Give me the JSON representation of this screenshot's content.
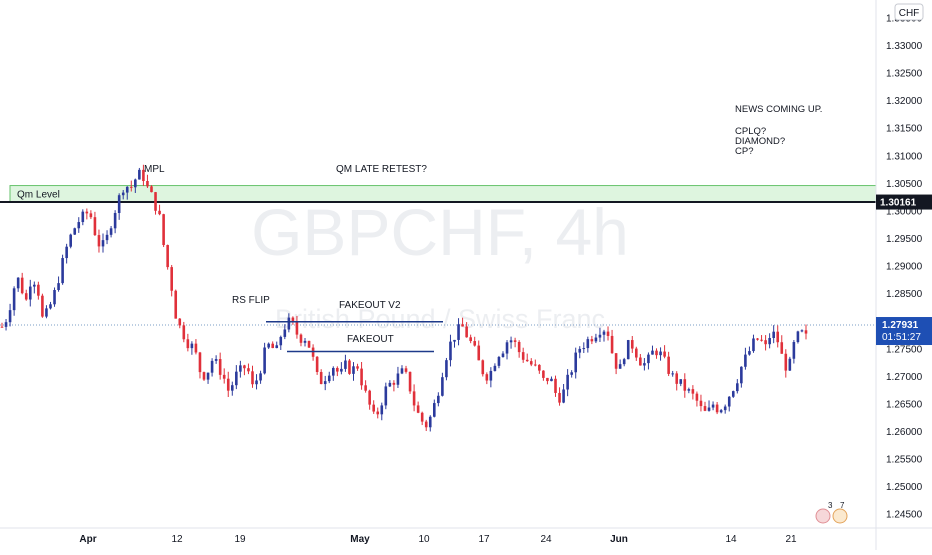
{
  "chart_data": {
    "type": "candlestick",
    "title": "GBPCHF, 4h",
    "subtitle": "British Pound / Swiss Franc",
    "currency_badge": "CHF",
    "ylim": [
      1.2425,
      1.3368
    ],
    "yticks": [
      "1.24500",
      "1.25000",
      "1.25500",
      "1.26000",
      "1.26500",
      "1.27000",
      "1.27500",
      "1.28000",
      "1.28500",
      "1.29000",
      "1.29500",
      "1.30000",
      "1.30500",
      "1.31000",
      "1.31500",
      "1.32000",
      "1.32500",
      "1.33000",
      "1.33500"
    ],
    "xticks": [
      "Apr",
      "12",
      "19",
      "May",
      "10",
      "17",
      "24",
      "Jun",
      "14",
      "21"
    ],
    "bold_xticks": [
      "Apr",
      "May",
      "Jun"
    ],
    "grid": false,
    "colors": {
      "up": "#2b3a9c",
      "down": "#e0303a",
      "text": "#131722",
      "axis_text": "#131722",
      "level": "#131722",
      "zone_fill": "#c8eec9",
      "zone_border": "#66c26b",
      "dotted": "#7a9cc6",
      "current_tag": "#1e4fb4",
      "watermark": "#e9ebee"
    },
    "current_price": "1.27931",
    "countdown": "01:51:27",
    "key_level_value": "1.30161",
    "price_path": [
      1.279,
      1.281,
      1.286,
      1.288,
      1.283,
      1.288,
      1.287,
      1.28,
      1.282,
      1.285,
      1.289,
      1.293,
      1.296,
      1.298,
      1.299,
      1.3,
      1.296,
      1.293,
      1.295,
      1.299,
      1.302,
      1.305,
      1.304,
      1.306,
      1.307,
      1.304,
      1.302,
      1.299,
      1.292,
      1.287,
      1.28,
      1.278,
      1.276,
      1.275,
      1.271,
      1.27,
      1.273,
      1.272,
      1.27,
      1.267,
      1.27,
      1.271,
      1.272,
      1.268,
      1.27,
      1.274,
      1.276,
      1.274,
      1.278,
      1.28,
      1.279,
      1.277,
      1.277,
      1.275,
      1.27,
      1.269,
      1.271,
      1.272,
      1.27,
      1.272,
      1.271,
      1.272,
      1.268,
      1.265,
      1.262,
      1.265,
      1.268,
      1.269,
      1.27,
      1.271,
      1.268,
      1.264,
      1.262,
      1.261,
      1.264,
      1.268,
      1.273,
      1.276,
      1.278,
      1.279,
      1.277,
      1.275,
      1.272,
      1.27,
      1.271,
      1.274,
      1.275,
      1.277,
      1.276,
      1.274,
      1.273,
      1.272,
      1.271,
      1.269,
      1.27,
      1.267,
      1.266,
      1.269,
      1.272,
      1.275,
      1.276,
      1.277,
      1.278,
      1.279,
      1.278,
      1.273,
      1.271,
      1.275,
      1.276,
      1.274,
      1.272,
      1.273,
      1.275,
      1.274,
      1.272,
      1.27,
      1.269,
      1.268,
      1.267,
      1.266,
      1.264,
      1.263,
      1.265,
      1.264,
      1.265,
      1.267,
      1.269,
      1.272,
      1.274,
      1.276,
      1.277,
      1.275,
      1.278,
      1.277,
      1.273,
      1.271,
      1.276,
      1.278,
      1.277
    ],
    "lines": [
      {
        "label": "FAKEOUT",
        "value": 1.2745
      },
      {
        "label": "FAKEOUT V2",
        "value": 1.2799
      }
    ],
    "zone": {
      "label": "Qm Level",
      "low": 1.3016,
      "high": 1.3046
    },
    "annotations": [
      "MPL",
      "QM LATE RETEST?",
      "RS FLIP",
      "NEWS COMING UP.",
      "CPLQ?",
      "DIAMOND?",
      "CP?"
    ],
    "badge_counts": [
      "3",
      "7"
    ]
  }
}
